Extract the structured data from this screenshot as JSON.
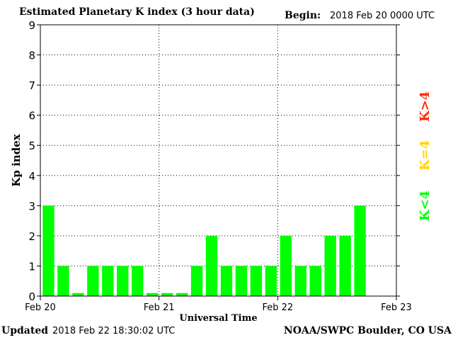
{
  "header": {
    "title": "Estimated Planetary K index (3 hour data)",
    "begin_label": "Begin:",
    "begin_value": "2018 Feb 20 0000 UTC"
  },
  "footer": {
    "updated_label": "Updated",
    "updated_value": "2018 Feb 22 18:30:02 UTC",
    "credit": "NOAA/SWPC Boulder, CO USA"
  },
  "legend": {
    "high": {
      "label": "K>4",
      "color": "#ff2a00"
    },
    "mid": {
      "label": "K=4",
      "color": "#ffd400"
    },
    "low": {
      "label": "K<4",
      "color": "#00ff00"
    }
  },
  "colors": {
    "bar": "#00ff00",
    "grid": "#000000"
  },
  "chart_data": {
    "type": "bar",
    "title": "Estimated Planetary K index (3 hour data)",
    "xlabel": "Universal Time",
    "ylabel": "Kp index",
    "ylim": [
      0,
      9
    ],
    "y_ticks": [
      "0",
      "1",
      "2",
      "3",
      "4",
      "5",
      "6",
      "7",
      "8",
      "9"
    ],
    "x_ticks": [
      "Feb 20",
      "Feb 21",
      "Feb 22",
      "Feb 23"
    ],
    "grid": "dotted",
    "bar_slots_total": 24,
    "values": [
      3,
      1,
      0.1,
      1,
      1,
      1,
      1,
      0.1,
      0.1,
      0.1,
      1,
      2,
      1,
      1,
      1,
      1,
      2,
      1,
      1,
      2,
      2,
      3
    ]
  }
}
